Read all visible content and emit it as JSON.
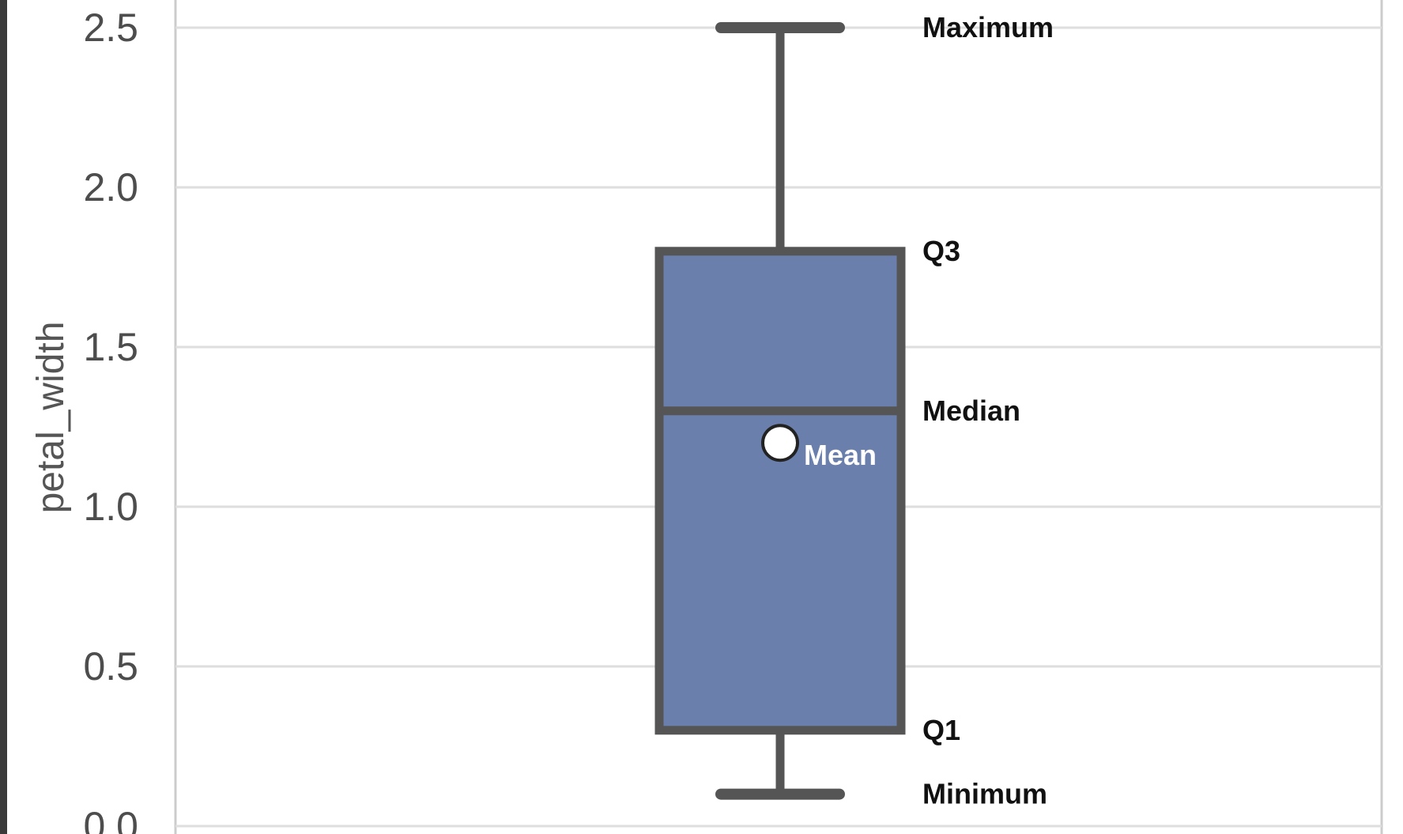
{
  "chart_data": {
    "type": "box",
    "ylabel": "petal_width",
    "ylim": [
      0,
      2.57
    ],
    "yticks": [
      0.0,
      0.5,
      1.0,
      1.5,
      2.0,
      2.5
    ],
    "ytick_labels": [
      "0.0",
      "0.5",
      "1.0",
      "1.5",
      "2.0",
      "2.5"
    ],
    "grid": true,
    "box": {
      "minimum": 0.1,
      "q1": 0.3,
      "median": 1.3,
      "mean": 1.2,
      "q3": 1.8,
      "maximum": 2.5
    },
    "annotations": {
      "maximum": "Maximum",
      "q3": "Q3",
      "median": "Median",
      "mean": "Mean",
      "q1": "Q1",
      "minimum": "Minimum"
    },
    "colors": {
      "box_fill": "#6a7fac",
      "box_edge": "#555555",
      "grid": "#dedede",
      "mean_marker": "#ffffff",
      "left_frame": "#3a3a3a"
    }
  }
}
